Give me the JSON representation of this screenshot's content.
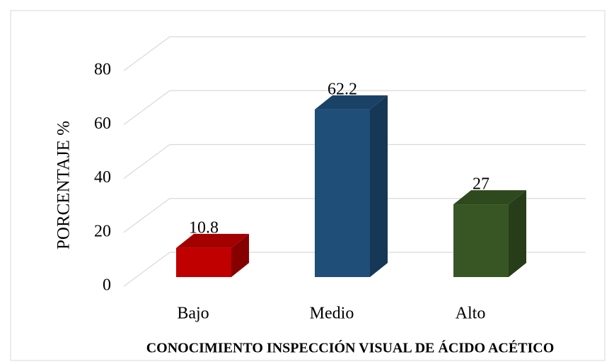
{
  "chart_data": {
    "type": "bar3d",
    "categories": [
      "Bajo",
      "Medio",
      "Alto"
    ],
    "values": [
      10.8,
      62.2,
      27
    ],
    "colors": [
      "#c00000",
      "#1f4e79",
      "#375623"
    ],
    "ylim": [
      0,
      80
    ],
    "yticks": [
      0,
      20,
      40,
      60,
      80
    ],
    "grid": true,
    "y_label": "PORCENTAJE %",
    "x_label": "CONOCIMIENTO INSPECCIÓN VISUAL DE ÁCIDO ACÉTICO"
  }
}
